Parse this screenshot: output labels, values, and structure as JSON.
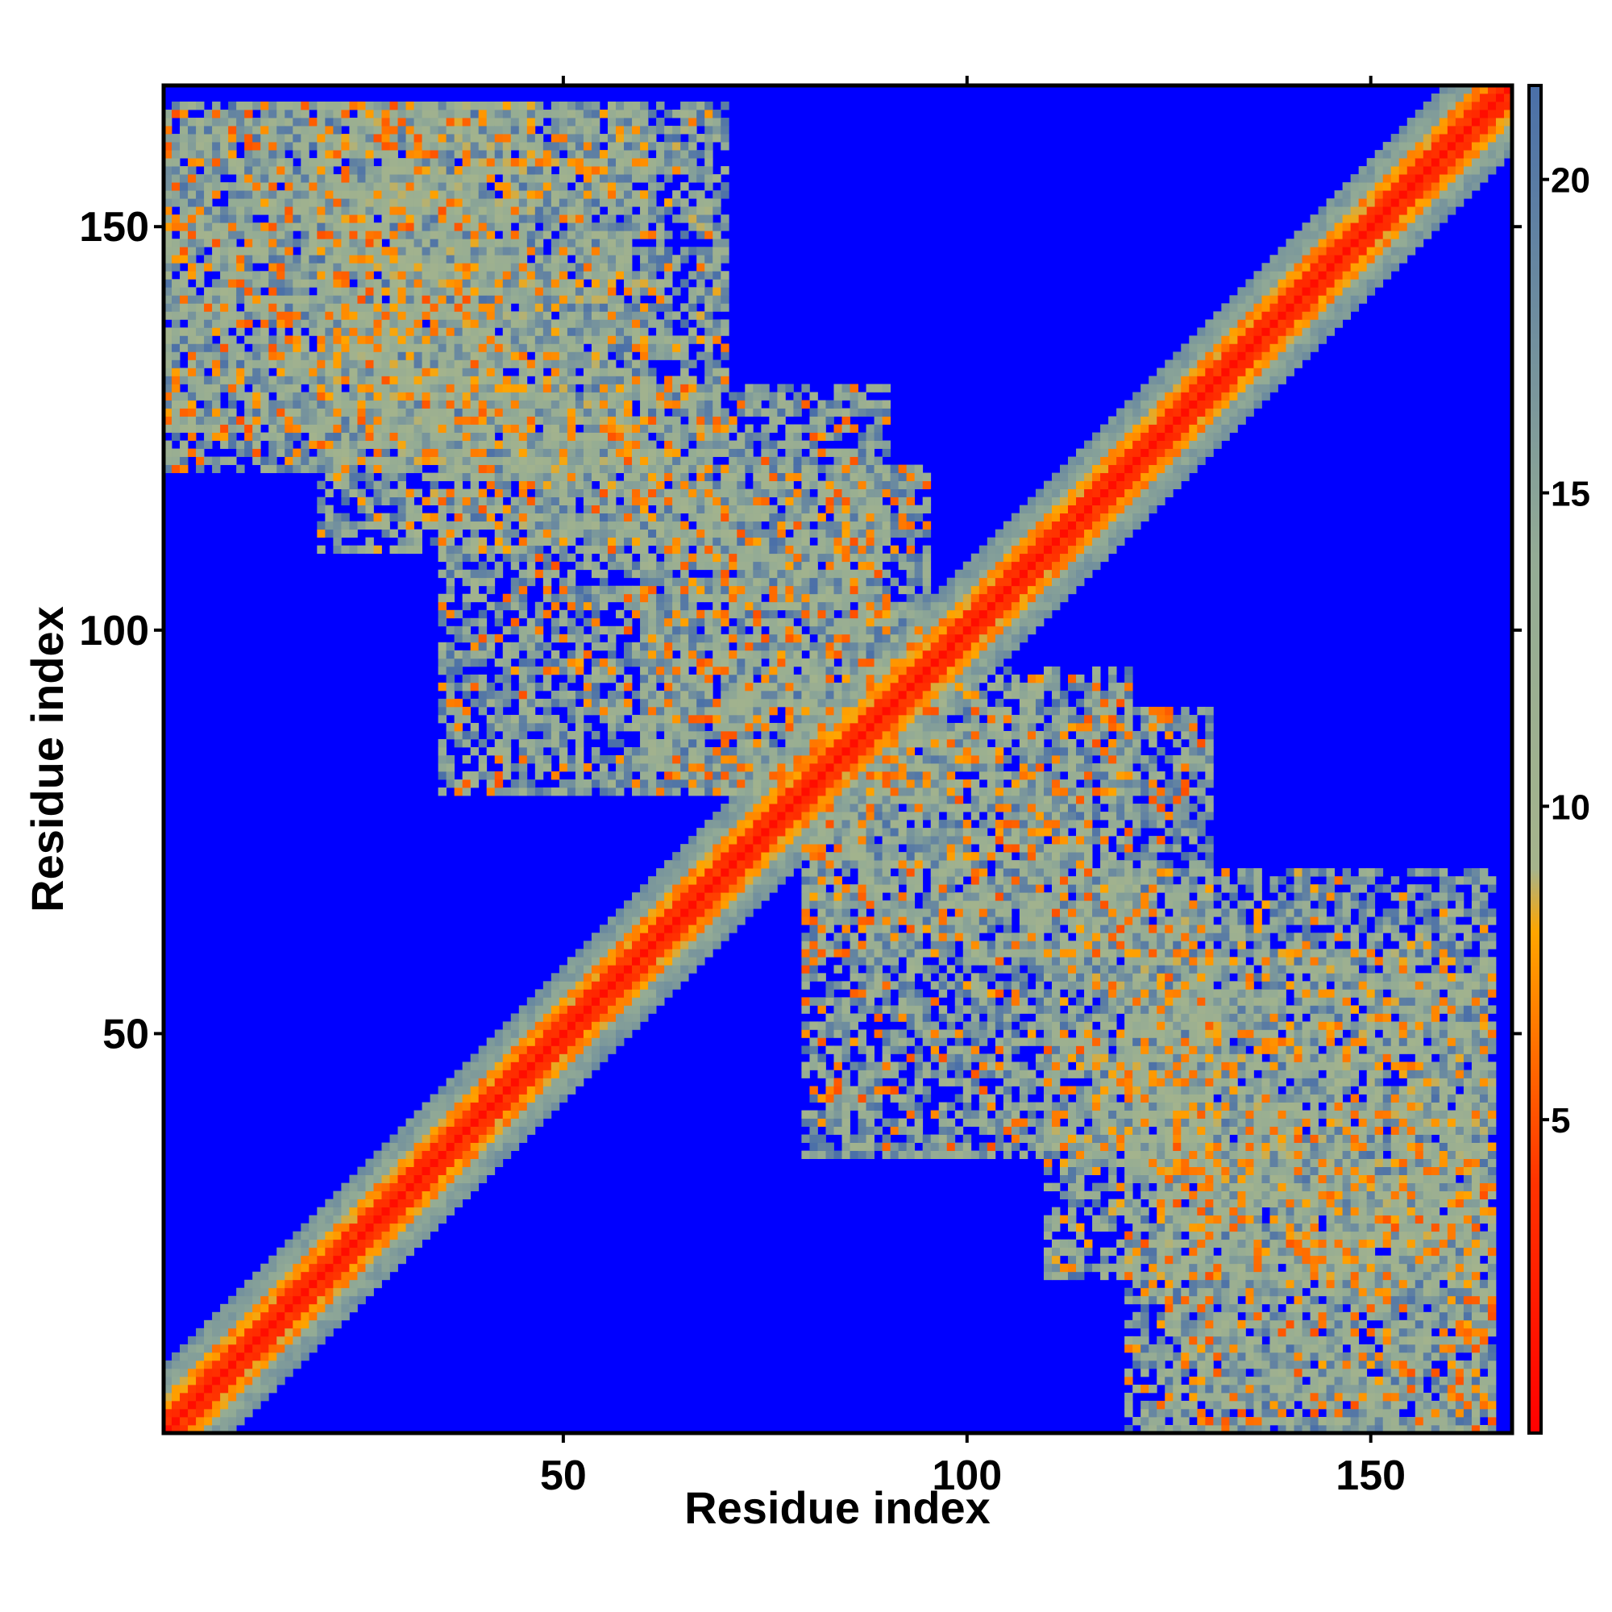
{
  "chart_data": {
    "type": "heatmap",
    "title": "",
    "xlabel": "Residue index",
    "ylabel": "Residue index",
    "xlim": [
      1,
      167
    ],
    "ylim": [
      1,
      167
    ],
    "x_ticks": [
      50,
      100,
      150
    ],
    "y_ticks": [
      50,
      100,
      150
    ],
    "x_tick_labels": [
      "50",
      "100",
      "150"
    ],
    "y_tick_labels": [
      "50",
      "100",
      "150"
    ],
    "colorbar": {
      "range": [
        0,
        21.5
      ],
      "ticks": [
        5,
        10,
        15,
        20
      ],
      "tick_labels": [
        "5",
        "10",
        "15",
        "20"
      ],
      "stops": [
        {
          "value": 0,
          "color": "#ff0000"
        },
        {
          "value": 4,
          "color": "#ff3300"
        },
        {
          "value": 8,
          "color": "#ffa500"
        },
        {
          "value": 9,
          "color": "#a5b48c"
        },
        {
          "value": 14,
          "color": "#93ab95"
        },
        {
          "value": 21.5,
          "color": "#4a6fa8"
        }
      ],
      "background_color": "#0000ff"
    },
    "description_of_structure": {
      "diagonal_contacts": "distance below 5 along the main diagonal (i = j), widening band up to ~12 within |i-j| < 8",
      "contact_regions": [
        {
          "i_range": [
            1,
            40
          ],
          "j_range": [
            125,
            165
          ],
          "min_value": 5
        },
        {
          "i_range": [
            30,
            70
          ],
          "j_range": [
            120,
            165
          ],
          "min_value": 6
        },
        {
          "i_range": [
            35,
            90
          ],
          "j_range": [
            80,
            130
          ],
          "min_value": 5
        },
        {
          "i_range": [
            80,
            120
          ],
          "j_range": [
            60,
            95
          ],
          "min_value": 5
        },
        {
          "i_range": [
            110,
            165
          ],
          "j_range": [
            20,
            60
          ],
          "min_value": 6
        },
        {
          "i_range": [
            120,
            165
          ],
          "j_range": [
            1,
            30
          ],
          "min_value": 5
        }
      ]
    },
    "grid": false,
    "legend": "none"
  }
}
